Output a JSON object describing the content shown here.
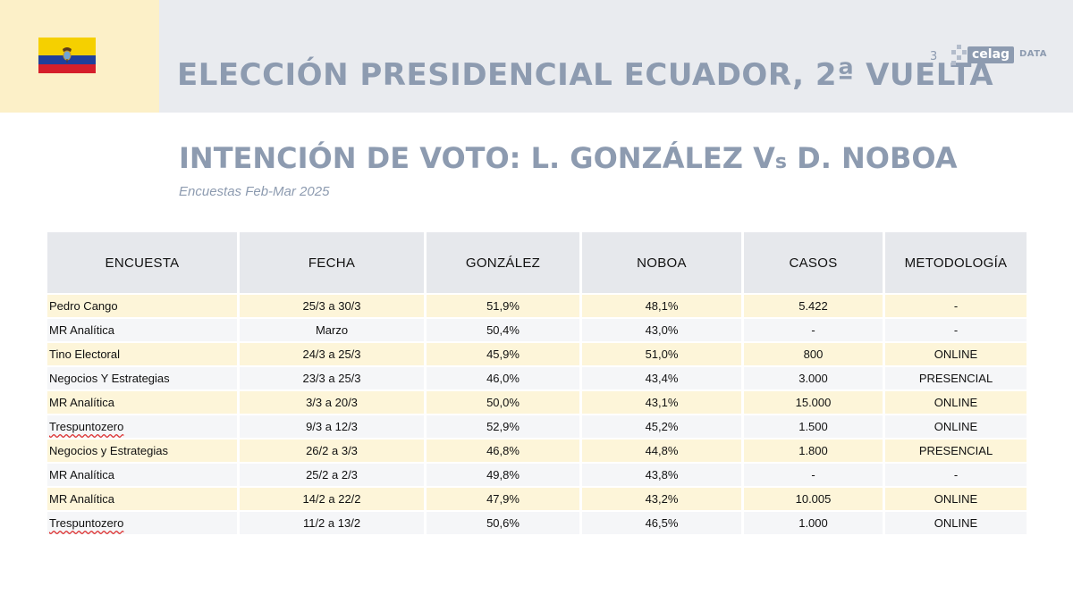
{
  "header": {
    "title": "ELECCIÓN PRESIDENCIAL ECUADOR, 2ª VUELTA",
    "page_number": "3",
    "brand_name": "celag",
    "brand_suffix": "DATA"
  },
  "section": {
    "title_main": "INTENCIÓN DE VOTO: L. GONZÁLEZ V",
    "title_s": "s",
    "title_end": " D. NOBOA",
    "caption": "Encuestas Feb-Mar 2025"
  },
  "colors": {
    "accent": "#8d9bb0",
    "header_band": "#e9ebef",
    "flag_block": "#fcf0c8",
    "row_highlight": "#fdf5d9"
  },
  "table": {
    "headers": [
      "ENCUESTA",
      "FECHA",
      "GONZÁLEZ",
      "NOBOA",
      "CASOS",
      "METODOLOGÍA"
    ],
    "rows": [
      [
        "Pedro Cango",
        "25/3 a 30/3",
        "51,9%",
        "48,1%",
        "5.422",
        "-"
      ],
      [
        "MR Analítica",
        "Marzo",
        "50,4%",
        "43,0%",
        "-",
        "-"
      ],
      [
        "Tino Electoral",
        "24/3 a 25/3",
        "45,9%",
        "51,0%",
        "800",
        "ONLINE"
      ],
      [
        "Negocios Y Estrategias",
        "23/3 a 25/3",
        "46,0%",
        "43,4%",
        "3.000",
        "PRESENCIAL"
      ],
      [
        "MR Analítica",
        "3/3 a 20/3",
        "50,0%",
        "43,1%",
        "15.000",
        "ONLINE"
      ],
      [
        "Trespuntozero",
        "9/3 a 12/3",
        "52,9%",
        "45,2%",
        "1.500",
        "ONLINE"
      ],
      [
        "Negocios y Estrategias",
        "26/2 a 3/3",
        "46,8%",
        "44,8%",
        "1.800",
        "PRESENCIAL"
      ],
      [
        "MR Analítica",
        "25/2 a 2/3",
        "49,8%",
        "43,8%",
        "-",
        "-"
      ],
      [
        "MR Analítica",
        "14/2 a 22/2",
        "47,9%",
        "43,2%",
        "10.005",
        "ONLINE"
      ],
      [
        "Trespuntozero",
        "11/2 a 13/2",
        "50,6%",
        "46,5%",
        "1.000",
        "ONLINE"
      ]
    ]
  }
}
